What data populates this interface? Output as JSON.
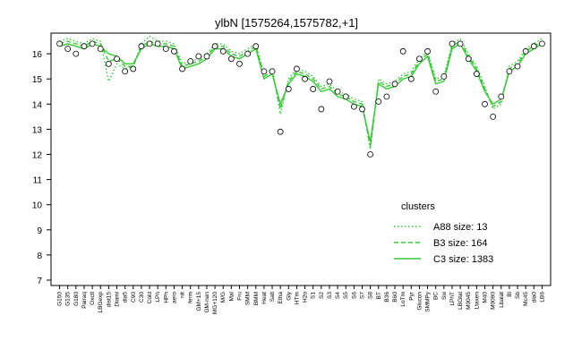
{
  "chart_data": {
    "type": "line",
    "title": "ylbN [1575264,1575782,+1]",
    "categories": [
      "G150",
      "G135",
      "G180",
      "Pairaq",
      "Oxctl",
      "LBGexp",
      "dist15",
      "Diami",
      "dia5",
      "C90",
      "C30",
      "Cold",
      "LPh",
      "HPh",
      "aero",
      "nit",
      "ferm",
      "GM+15",
      "GM-nan",
      "MG+120",
      "M/G",
      "Mal",
      "Fru",
      "SMM",
      "BMM",
      "Heat",
      "Salt",
      "Etha",
      "Gly",
      "HTm",
      "H2o",
      "S1",
      "S2",
      "S3",
      "S4",
      "S5",
      "S6",
      "S7",
      "S8",
      "BT",
      "B36",
      "B60",
      "LoTm",
      "Pyr",
      "Glucon",
      "SMMPy",
      "BC",
      "Sw",
      "LPhT",
      "LBGtal",
      "M0045",
      "Ltaxen",
      "M40",
      "M0090",
      "Lbalat",
      "Bl",
      "Sb",
      "Mc45",
      "dia0",
      "LB6"
    ],
    "series": [
      {
        "name": "A88 size: 13",
        "color": "#33cc33",
        "dash": "dotted",
        "values": [
          16.5,
          16.6,
          16.5,
          16.4,
          16.6,
          16.5,
          14.9,
          15.6,
          15.4,
          15.5,
          16.4,
          16.7,
          16.5,
          16.5,
          16.4,
          15.6,
          15.7,
          15.8,
          16.0,
          16.4,
          16.4,
          16.1,
          16.0,
          16.2,
          16.4,
          15.2,
          15.4,
          13.6,
          15.0,
          15.4,
          15.3,
          15.1,
          14.7,
          14.8,
          14.5,
          14.4,
          14.2,
          14.1,
          12.2,
          15.0,
          14.8,
          14.9,
          15.2,
          15.3,
          15.8,
          16.1,
          15.0,
          15.1,
          16.4,
          16.6,
          16.0,
          15.5,
          14.7,
          13.8,
          14.0,
          15.5,
          15.7,
          16.2,
          16.4,
          16.6
        ]
      },
      {
        "name": "B3 size: 164",
        "color": "#33cc33",
        "dash": "dashed",
        "values": [
          16.4,
          16.5,
          16.4,
          16.3,
          16.5,
          16.4,
          15.7,
          15.8,
          15.5,
          15.5,
          16.3,
          16.5,
          16.4,
          16.4,
          16.3,
          15.5,
          15.6,
          15.7,
          15.9,
          16.3,
          16.3,
          16.0,
          15.9,
          16.1,
          16.3,
          15.1,
          15.3,
          13.8,
          14.9,
          15.3,
          15.2,
          15.0,
          14.6,
          14.7,
          14.4,
          14.3,
          14.1,
          14.0,
          12.3,
          14.9,
          14.7,
          14.8,
          15.1,
          15.2,
          15.7,
          16.0,
          14.9,
          15.0,
          16.3,
          16.5,
          15.9,
          15.4,
          14.6,
          13.9,
          14.1,
          15.4,
          15.6,
          16.1,
          16.3,
          16.5
        ]
      },
      {
        "name": "C3 size: 1383",
        "color": "#33cc33",
        "dash": "solid",
        "values": [
          16.3,
          16.4,
          16.3,
          16.2,
          16.4,
          16.3,
          16.0,
          15.9,
          15.6,
          15.6,
          16.2,
          16.4,
          16.3,
          16.3,
          16.2,
          15.4,
          15.5,
          15.6,
          15.8,
          16.2,
          16.2,
          15.9,
          15.8,
          16.0,
          16.2,
          15.0,
          15.2,
          14.0,
          14.8,
          15.2,
          15.1,
          14.9,
          14.5,
          14.6,
          14.3,
          14.2,
          14.0,
          13.9,
          12.5,
          14.8,
          14.6,
          14.7,
          15.0,
          15.1,
          15.6,
          15.9,
          14.8,
          14.9,
          16.2,
          16.4,
          15.8,
          15.3,
          14.5,
          14.0,
          14.2,
          15.3,
          15.5,
          16.0,
          16.2,
          16.4
        ]
      }
    ],
    "points": [
      16.4,
      16.2,
      16.0,
      16.3,
      16.4,
      16.2,
      15.6,
      15.8,
      15.3,
      15.4,
      16.3,
      16.4,
      16.4,
      16.2,
      16.1,
      15.4,
      15.7,
      15.9,
      15.9,
      16.3,
      16.1,
      15.8,
      15.6,
      16.0,
      16.3,
      15.3,
      15.3,
      12.9,
      14.6,
      15.4,
      15.0,
      14.6,
      13.8,
      14.9,
      14.5,
      14.3,
      13.9,
      13.8,
      12.0,
      14.1,
      14.3,
      14.8,
      16.1,
      15.0,
      15.8,
      16.1,
      14.5,
      15.1,
      16.4,
      16.4,
      15.8,
      15.2,
      14.0,
      13.5,
      14.3,
      15.3,
      15.5,
      16.1,
      16.3,
      16.4
    ],
    "ylim": [
      7,
      16.5
    ],
    "yticks": [
      7,
      8,
      9,
      10,
      11,
      12,
      13,
      14,
      15,
      16
    ],
    "legend_title": "clusters",
    "legend": "right"
  }
}
